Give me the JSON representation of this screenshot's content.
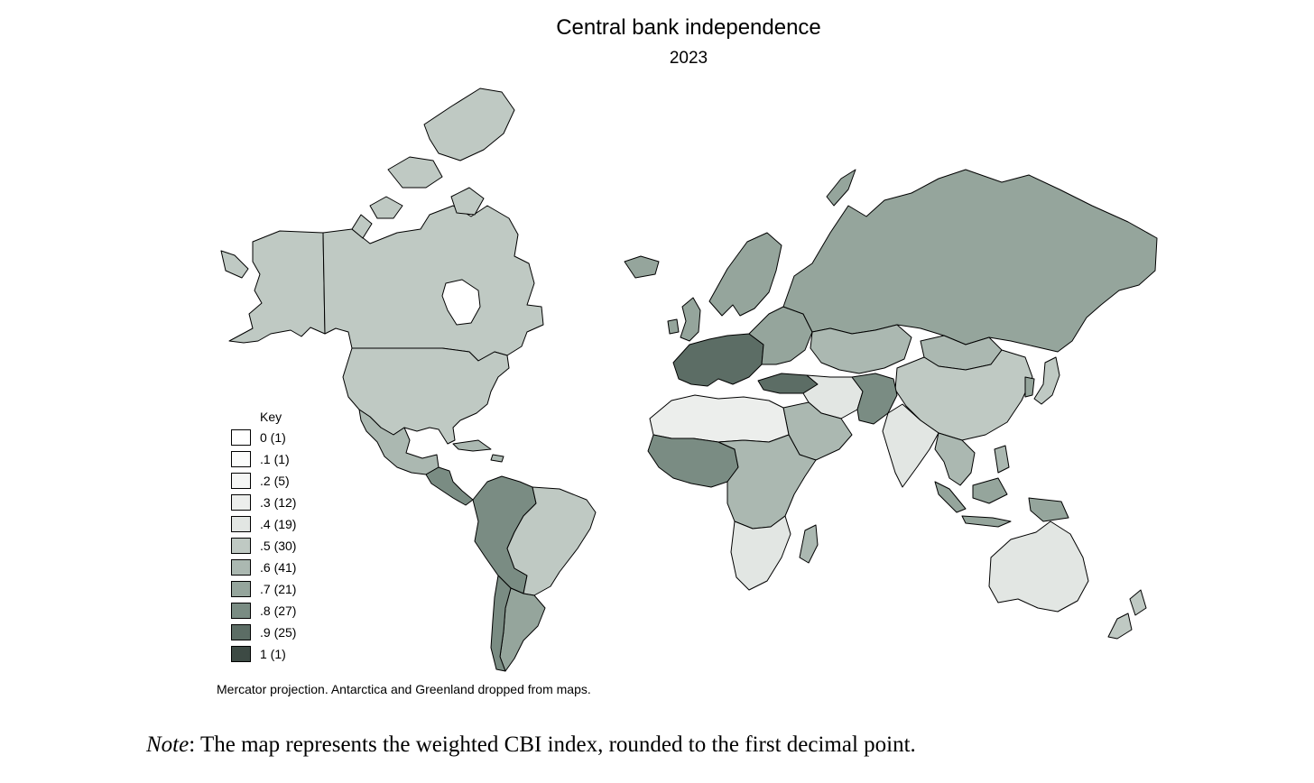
{
  "title": "Central bank independence",
  "subtitle": "2023",
  "legend": {
    "title": "Key",
    "items": [
      {
        "label": "0 (1)",
        "color": "#ffffff"
      },
      {
        "label": ".1 (1)",
        "color": "#fbfcfb"
      },
      {
        "label": ".2 (5)",
        "color": "#f5f6f5"
      },
      {
        "label": ".3 (12)",
        "color": "#eceeec"
      },
      {
        "label": ".4 (19)",
        "color": "#e2e6e3"
      },
      {
        "label": ".5 (30)",
        "color": "#bfc9c3"
      },
      {
        "label": ".6 (41)",
        "color": "#abb8b1"
      },
      {
        "label": ".7 (21)",
        "color": "#95a59c"
      },
      {
        "label": ".8 (27)",
        "color": "#7a8c83"
      },
      {
        "label": ".9 (25)",
        "color": "#5c6d65"
      },
      {
        "label": "1 (1)",
        "color": "#3d4a44"
      }
    ]
  },
  "caption": "Mercator projection. Antarctica and Greenland dropped from maps.",
  "note": {
    "label": "Note",
    "text": ": The map represents the weighted CBI index, rounded to the first decimal point."
  },
  "regions": [
    {
      "name": "canada",
      "value": 0.5,
      "color": "#bfc9c3"
    },
    {
      "name": "alaska",
      "value": 0.5,
      "color": "#bfc9c3"
    },
    {
      "name": "usa",
      "value": 0.5,
      "color": "#bfc9c3"
    },
    {
      "name": "mexico",
      "value": 0.6,
      "color": "#abb8b1"
    },
    {
      "name": "central-america",
      "value": 0.8,
      "color": "#7a8c83"
    },
    {
      "name": "brazil",
      "value": 0.5,
      "color": "#bfc9c3"
    },
    {
      "name": "andean",
      "value": 0.8,
      "color": "#7a8c83"
    },
    {
      "name": "argentina",
      "value": 0.7,
      "color": "#95a59c"
    },
    {
      "name": "chile",
      "value": 0.8,
      "color": "#7a8c83"
    },
    {
      "name": "russia",
      "value": 0.7,
      "color": "#95a59c"
    },
    {
      "name": "scandinavia",
      "value": 0.7,
      "color": "#95a59c"
    },
    {
      "name": "western-europe",
      "value": 0.9,
      "color": "#5c6d65"
    },
    {
      "name": "eastern-europe",
      "value": 0.7,
      "color": "#95a59c"
    },
    {
      "name": "north-africa",
      "value": 0.3,
      "color": "#eceeec"
    },
    {
      "name": "west-africa",
      "value": 0.8,
      "color": "#7a8c83"
    },
    {
      "name": "central-africa",
      "value": 0.6,
      "color": "#abb8b1"
    },
    {
      "name": "southern-africa",
      "value": 0.4,
      "color": "#e2e6e3"
    },
    {
      "name": "madagascar",
      "value": 0.6,
      "color": "#abb8b1"
    },
    {
      "name": "middle-east",
      "value": 0.4,
      "color": "#e2e6e3"
    },
    {
      "name": "arabia",
      "value": 0.6,
      "color": "#abb8b1"
    },
    {
      "name": "central-asia",
      "value": 0.6,
      "color": "#abb8b1"
    },
    {
      "name": "pakistan-afghanistan",
      "value": 0.8,
      "color": "#7a8c83"
    },
    {
      "name": "india",
      "value": 0.4,
      "color": "#e2e6e3"
    },
    {
      "name": "china",
      "value": 0.5,
      "color": "#bfc9c3"
    },
    {
      "name": "mongolia",
      "value": 0.6,
      "color": "#abb8b1"
    },
    {
      "name": "southeast-asia",
      "value": 0.6,
      "color": "#abb8b1"
    },
    {
      "name": "indonesia",
      "value": 0.7,
      "color": "#95a59c"
    },
    {
      "name": "australia",
      "value": 0.4,
      "color": "#e2e6e3"
    },
    {
      "name": "japan",
      "value": 0.5,
      "color": "#bfc9c3"
    },
    {
      "name": "new-zealand",
      "value": 0.5,
      "color": "#bfc9c3"
    },
    {
      "name": "turkey",
      "value": 0.9,
      "color": "#5c6d65"
    },
    {
      "name": "uk-ireland",
      "value": 0.7,
      "color": "#95a59c"
    },
    {
      "name": "iceland",
      "value": 0.7,
      "color": "#95a59c"
    },
    {
      "name": "arctic-islands",
      "value": 0.5,
      "color": "#bfc9c3"
    }
  ]
}
